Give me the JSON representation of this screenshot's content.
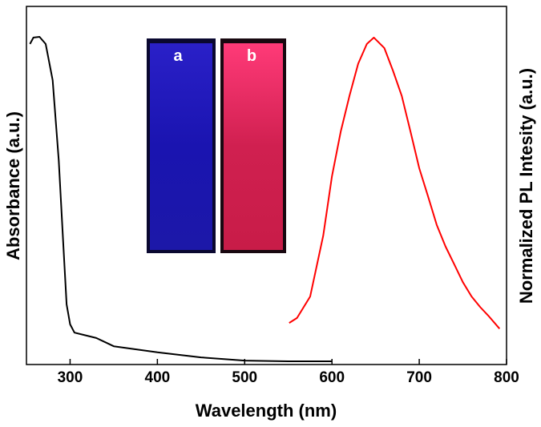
{
  "chart_data": {
    "type": "line",
    "xlabel": "Wavelength (nm)",
    "ylabel": "Absorbance (a.u.)",
    "y2label": "Normalized PL Intesity (a.u.)",
    "inset_labels": [
      "a",
      "b"
    ],
    "xlim": [
      250,
      800
    ],
    "xticks": [
      300,
      400,
      500,
      600,
      700,
      800
    ],
    "ylim": [
      0,
      1
    ],
    "y2lim": [
      0,
      1
    ],
    "series": [
      {
        "color": "#000000",
        "x": [
          254,
          258,
          265,
          272,
          280,
          287,
          292,
          296,
          300,
          305,
          315,
          330,
          350,
          400,
          450,
          500,
          550,
          600
        ],
        "values": [
          0.895,
          0.913,
          0.915,
          0.895,
          0.794,
          0.57,
          0.347,
          0.168,
          0.112,
          0.089,
          0.083,
          0.074,
          0.051,
          0.034,
          0.02,
          0.011,
          0.009,
          0.009
        ]
      },
      {
        "color": "#ff0000",
        "axis": "y2",
        "x": [
          551,
          560,
          575,
          590,
          600,
          610,
          620,
          630,
          640,
          648,
          660,
          670,
          680,
          690,
          700,
          710,
          720,
          730,
          740,
          750,
          760,
          770,
          780,
          792
        ],
        "values": [
          0.116,
          0.13,
          0.19,
          0.36,
          0.526,
          0.65,
          0.75,
          0.84,
          0.895,
          0.913,
          0.884,
          0.82,
          0.75,
          0.65,
          0.548,
          0.47,
          0.39,
          0.33,
          0.28,
          0.23,
          0.19,
          0.16,
          0.134,
          0.1
        ]
      }
    ]
  }
}
